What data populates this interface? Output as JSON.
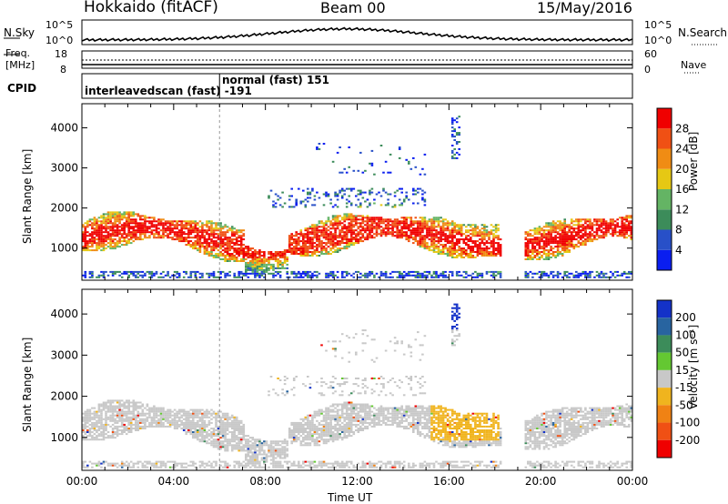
{
  "header": {
    "station": "Hokkaido (fitACF)",
    "beam": "Beam 00",
    "date": "15/May/2016"
  },
  "noise_panel": {
    "left_label": "N.Sky",
    "right_label": "N.Search",
    "ticks_left": [
      "10^5",
      "10^0"
    ],
    "ticks_right": [
      "10^5",
      "10^0"
    ]
  },
  "freq_panel": {
    "left_label_1": "Freq.",
    "left_label_2": "[MHz]",
    "ticks_left": [
      "18",
      "8"
    ],
    "ticks_right": [
      "60",
      "0"
    ],
    "right_label": "Nave"
  },
  "cpid_panel": {
    "label": "CPID",
    "entries": [
      {
        "text": "interleavedscan (fast) -191"
      },
      {
        "text": "normal (fast) 151"
      }
    ]
  },
  "chart_data": [
    {
      "type": "heatmap",
      "title": "",
      "xlabel": "",
      "ylabel": "Slant Range [km]",
      "x_ticks": [
        "00:00",
        "04:00",
        "08:00",
        "12:00",
        "16:00",
        "20:00",
        "00:00"
      ],
      "xlim_hours": [
        0,
        24
      ],
      "y_ticks": [
        1000,
        2000,
        3000,
        4000
      ],
      "ylim": [
        200,
        4600
      ],
      "colorbar": {
        "label": "Power [dB]",
        "ticks": [
          "4",
          "8",
          "12",
          "16",
          "20",
          "24",
          "28"
        ],
        "colors": [
          "#0a1ef0",
          "#2850c8",
          "#3c8c5a",
          "#64b464",
          "#e6c814",
          "#f08c14",
          "#f05014",
          "#f00000"
        ]
      }
    },
    {
      "type": "heatmap",
      "title": "",
      "xlabel": "Time UT",
      "ylabel": "Slant Range [km]",
      "x_ticks": [
        "00:00",
        "04:00",
        "08:00",
        "12:00",
        "16:00",
        "20:00",
        "00:00"
      ],
      "xlim_hours": [
        0,
        24
      ],
      "y_ticks": [
        1000,
        2000,
        3000,
        4000
      ],
      "ylim": [
        200,
        4600
      ],
      "colorbar": {
        "label": "Velocity [m s⁻¹]",
        "ticks": [
          "200",
          "100",
          "50",
          "15",
          "-15",
          "-50",
          "-100",
          "-200"
        ],
        "colors": [
          "#1432c8",
          "#2864a0",
          "#3c8c5a",
          "#64c832",
          "#c8c8c8",
          "#f0b41e",
          "#f08214",
          "#f05014",
          "#f00000"
        ]
      }
    }
  ],
  "colors": {
    "frame": "#000000",
    "gray": "#c8c8c8"
  }
}
